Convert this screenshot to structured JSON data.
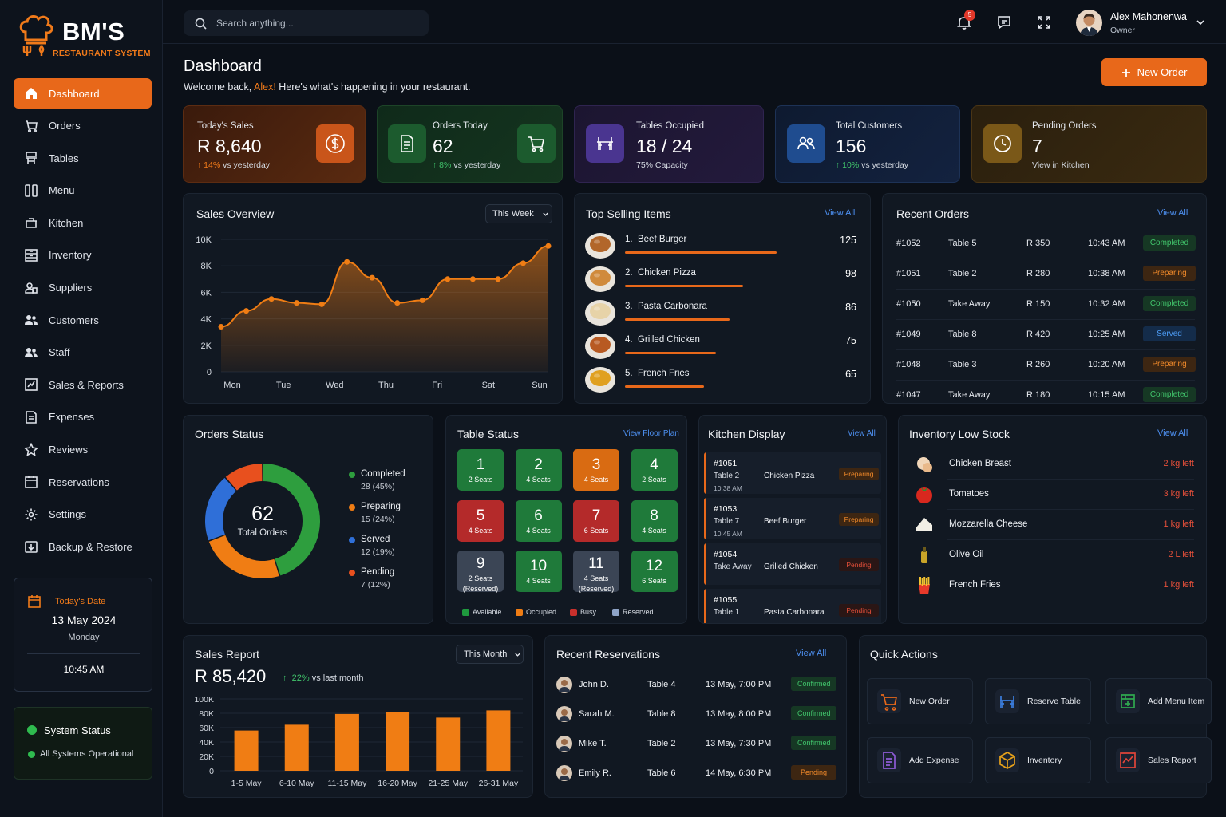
{
  "brand": {
    "name": "BM'S",
    "subtitle": "RESTAURANT SYSTEM",
    "accent": "#e8681a"
  },
  "search": {
    "placeholder": "Search anything..."
  },
  "header": {
    "notification_count": "5",
    "user_name": "Alex Mahonenwa",
    "user_role": "Owner"
  },
  "sidebar": {
    "items": [
      {
        "label": "Dashboard",
        "icon": "home-icon",
        "active": true
      },
      {
        "label": "Orders",
        "icon": "cart-icon"
      },
      {
        "label": "Tables",
        "icon": "table-icon"
      },
      {
        "label": "Menu",
        "icon": "menu-book-icon"
      },
      {
        "label": "Kitchen",
        "icon": "kitchen-icon"
      },
      {
        "label": "Inventory",
        "icon": "inventory-icon"
      },
      {
        "label": "Suppliers",
        "icon": "suppliers-icon"
      },
      {
        "label": "Customers",
        "icon": "customers-icon"
      },
      {
        "label": "Staff",
        "icon": "staff-icon"
      },
      {
        "label": "Sales & Reports",
        "icon": "reports-icon"
      },
      {
        "label": "Expenses",
        "icon": "expenses-icon"
      },
      {
        "label": "Reviews",
        "icon": "star-icon"
      },
      {
        "label": "Reservations",
        "icon": "calendar-icon"
      },
      {
        "label": "Settings",
        "icon": "gear-icon"
      },
      {
        "label": "Backup & Restore",
        "icon": "backup-icon"
      }
    ],
    "date_card": {
      "label": "Today's Date",
      "date": "13 May 2024",
      "weekday": "Monday",
      "time": "10:45 AM"
    },
    "system_status": {
      "title": "System Status",
      "text": "All Systems Operational"
    }
  },
  "page": {
    "title": "Dashboard",
    "welcome_prefix": "Welcome back,",
    "welcome_name": "Alex!",
    "welcome_suffix": "Here's what's happening in your restaurant.",
    "new_order_label": "New Order"
  },
  "kpis": [
    {
      "label": "Today's Sales",
      "value": "R 8,640",
      "change": "14%",
      "change_text": "vs yesterday"
    },
    {
      "label": "Orders Today",
      "value": "62",
      "change": "8%",
      "change_text": "vs yesterday"
    },
    {
      "label": "Tables Occupied",
      "value": "18 / 24",
      "sub": "75% Capacity"
    },
    {
      "label": "Total Customers",
      "value": "156",
      "change": "10%",
      "change_text": "vs yesterday"
    },
    {
      "label": "Pending Orders",
      "value": "7",
      "sub": "View in Kitchen"
    }
  ],
  "sales_overview": {
    "title": "Sales Overview",
    "period": "This Week",
    "chart_data": {
      "type": "area",
      "x": [
        "Mon",
        "",
        "",
        "Tue",
        "",
        "Wed",
        "",
        "Thu",
        "",
        "Fri",
        "",
        "Sat",
        "",
        "Sun"
      ],
      "values": [
        3400,
        4600,
        5500,
        5200,
        5100,
        8300,
        7100,
        5200,
        5400,
        7000,
        7000,
        7000,
        8200,
        9500
      ],
      "categories": [
        "Mon",
        "Tue",
        "Wed",
        "Thu",
        "Fri",
        "Sat",
        "Sun"
      ],
      "yticks": [
        "10K",
        "8K",
        "6K",
        "4K",
        "2K",
        "0"
      ],
      "ylim": [
        0,
        10000
      ]
    }
  },
  "top_selling": {
    "title": "Top Selling Items",
    "view_all": "View All",
    "items": [
      {
        "name": "1.  Beef Burger",
        "count": "125",
        "pct": 1.0
      },
      {
        "name": "2.  Chicken Pizza",
        "count": "98",
        "pct": 0.78
      },
      {
        "name": "3.  Pasta Carbonara",
        "count": "86",
        "pct": 0.69
      },
      {
        "name": "4.  Grilled Chicken",
        "count": "75",
        "pct": 0.6
      },
      {
        "name": "5.  French Fries",
        "count": "65",
        "pct": 0.52
      }
    ]
  },
  "recent_orders": {
    "title": "Recent Orders",
    "view_all": "View All",
    "rows": [
      {
        "id": "#1052",
        "table": "Table 5",
        "amount": "R 350",
        "time": "10:43 AM",
        "status": "Completed",
        "kind": "green"
      },
      {
        "id": "#1051",
        "table": "Table 2",
        "amount": "R 280",
        "time": "10:38 AM",
        "status": "Preparing",
        "kind": "orange"
      },
      {
        "id": "#1050",
        "table": "Take Away",
        "amount": "R 150",
        "time": "10:32 AM",
        "status": "Completed",
        "kind": "green"
      },
      {
        "id": "#1049",
        "table": "Table 8",
        "amount": "R 420",
        "time": "10:25 AM",
        "status": "Served",
        "kind": "blue"
      },
      {
        "id": "#1048",
        "table": "Table 3",
        "amount": "R 260",
        "time": "10:20 AM",
        "status": "Preparing",
        "kind": "orange"
      },
      {
        "id": "#1047",
        "table": "Take Away",
        "amount": "R 180",
        "time": "10:15 AM",
        "status": "Completed",
        "kind": "green"
      }
    ]
  },
  "orders_status": {
    "title": "Orders Status",
    "total": "62",
    "total_label": "Total Orders",
    "chart_data": {
      "type": "pie",
      "categories": [
        "Completed",
        "Preparing",
        "Served",
        "Pending"
      ],
      "values": [
        28,
        15,
        12,
        7
      ],
      "colors": [
        "#2e9e3e",
        "#f07d14",
        "#2f6fd8",
        "#e8501e"
      ]
    },
    "legend": [
      {
        "label": "Completed",
        "detail": "28 (45%)"
      },
      {
        "label": "Preparing",
        "detail": "15 (24%)"
      },
      {
        "label": "Served",
        "detail": "12 (19%)"
      },
      {
        "label": "Pending",
        "detail": "7 (12%)"
      }
    ]
  },
  "table_status": {
    "title": "Table Status",
    "view_all": "View Floor Plan",
    "tables": [
      {
        "n": "1",
        "s": "2 Seats",
        "c": "green"
      },
      {
        "n": "2",
        "s": "4 Seats",
        "c": "green"
      },
      {
        "n": "3",
        "s": "4 Seats",
        "c": "orange"
      },
      {
        "n": "4",
        "s": "2 Seats",
        "c": "green"
      },
      {
        "n": "5",
        "s": "4 Seats",
        "c": "red"
      },
      {
        "n": "6",
        "s": "4 Seats",
        "c": "green"
      },
      {
        "n": "7",
        "s": "6 Seats",
        "c": "red"
      },
      {
        "n": "8",
        "s": "4 Seats",
        "c": "green"
      },
      {
        "n": "9",
        "s": "2 Seats",
        "s2": "(Reserved)",
        "c": "gray"
      },
      {
        "n": "10",
        "s": "4 Seats",
        "c": "green"
      },
      {
        "n": "11",
        "s": "4 Seats",
        "s2": "(Reserved)",
        "c": "gray"
      },
      {
        "n": "12",
        "s": "6 Seats",
        "c": "green"
      }
    ],
    "legend": [
      "Available",
      "Occupied",
      "Busy",
      "Reserved"
    ]
  },
  "kitchen": {
    "title": "Kitchen Display",
    "view_all": "View All",
    "tickets": [
      {
        "id": "#1051",
        "where": "Table 2",
        "time": "10:38 AM",
        "item": "Chicken Pizza",
        "status": "Preparing",
        "kind": "orange"
      },
      {
        "id": "#1053",
        "where": "Table 7",
        "time": "10:45 AM",
        "item": "Beef Burger",
        "status": "Preparing",
        "kind": "orange"
      },
      {
        "id": "#1054",
        "where": "Take Away",
        "time": "",
        "item": "Grilled Chicken",
        "status": "Pending",
        "kind": "red"
      },
      {
        "id": "#1055",
        "where": "Table 1",
        "time": "",
        "item": "Pasta Carbonara",
        "status": "Pending",
        "kind": "red"
      }
    ]
  },
  "inventory_low": {
    "title": "Inventory Low Stock",
    "view_all": "View All",
    "items": [
      {
        "name": "Chicken Breast",
        "left": "2 kg left"
      },
      {
        "name": "Tomatoes",
        "left": "3 kg left"
      },
      {
        "name": "Mozzarella Cheese",
        "left": "1 kg left"
      },
      {
        "name": "Olive Oil",
        "left": "2 L left"
      },
      {
        "name": "French Fries",
        "left": "1 kg left"
      }
    ]
  },
  "sales_report": {
    "title": "Sales Report",
    "period": "This Month",
    "total": "R 85,420",
    "change": "22%",
    "change_text": "vs last month",
    "chart_data": {
      "type": "bar",
      "categories": [
        "1-5 May",
        "6-10 May",
        "11-15 May",
        "16-20 May",
        "21-25 May",
        "26-31 May"
      ],
      "values": [
        56000,
        64000,
        79000,
        82000,
        74000,
        84000
      ],
      "yticks": [
        "100K",
        "80K",
        "60K",
        "40K",
        "20K",
        "0"
      ],
      "ylim": [
        0,
        100000
      ]
    }
  },
  "reservations": {
    "title": "Recent Reservations",
    "view_all": "View All",
    "rows": [
      {
        "name": "John D.",
        "table": "Table 4",
        "when": "13 May, 7:00 PM",
        "status": "Confirmed",
        "kind": "green"
      },
      {
        "name": "Sarah M.",
        "table": "Table 8",
        "when": "13 May, 8:00 PM",
        "status": "Confirmed",
        "kind": "green"
      },
      {
        "name": "Mike T.",
        "table": "Table 2",
        "when": "13 May, 7:30 PM",
        "status": "Confirmed",
        "kind": "green"
      },
      {
        "name": "Emily R.",
        "table": "Table 6",
        "when": "14 May, 6:30 PM",
        "status": "Pending",
        "kind": "orange"
      }
    ]
  },
  "quick_actions": {
    "title": "Quick Actions",
    "items": [
      {
        "label": "New Order",
        "icon": "cart-icon"
      },
      {
        "label": "Reserve Table",
        "icon": "table-icon"
      },
      {
        "label": "Add Menu Item",
        "icon": "add-menu-icon"
      },
      {
        "label": "Add Expense",
        "icon": "expense-icon"
      },
      {
        "label": "Inventory",
        "icon": "box-icon"
      },
      {
        "label": "Sales Report",
        "icon": "chart-icon"
      }
    ]
  }
}
